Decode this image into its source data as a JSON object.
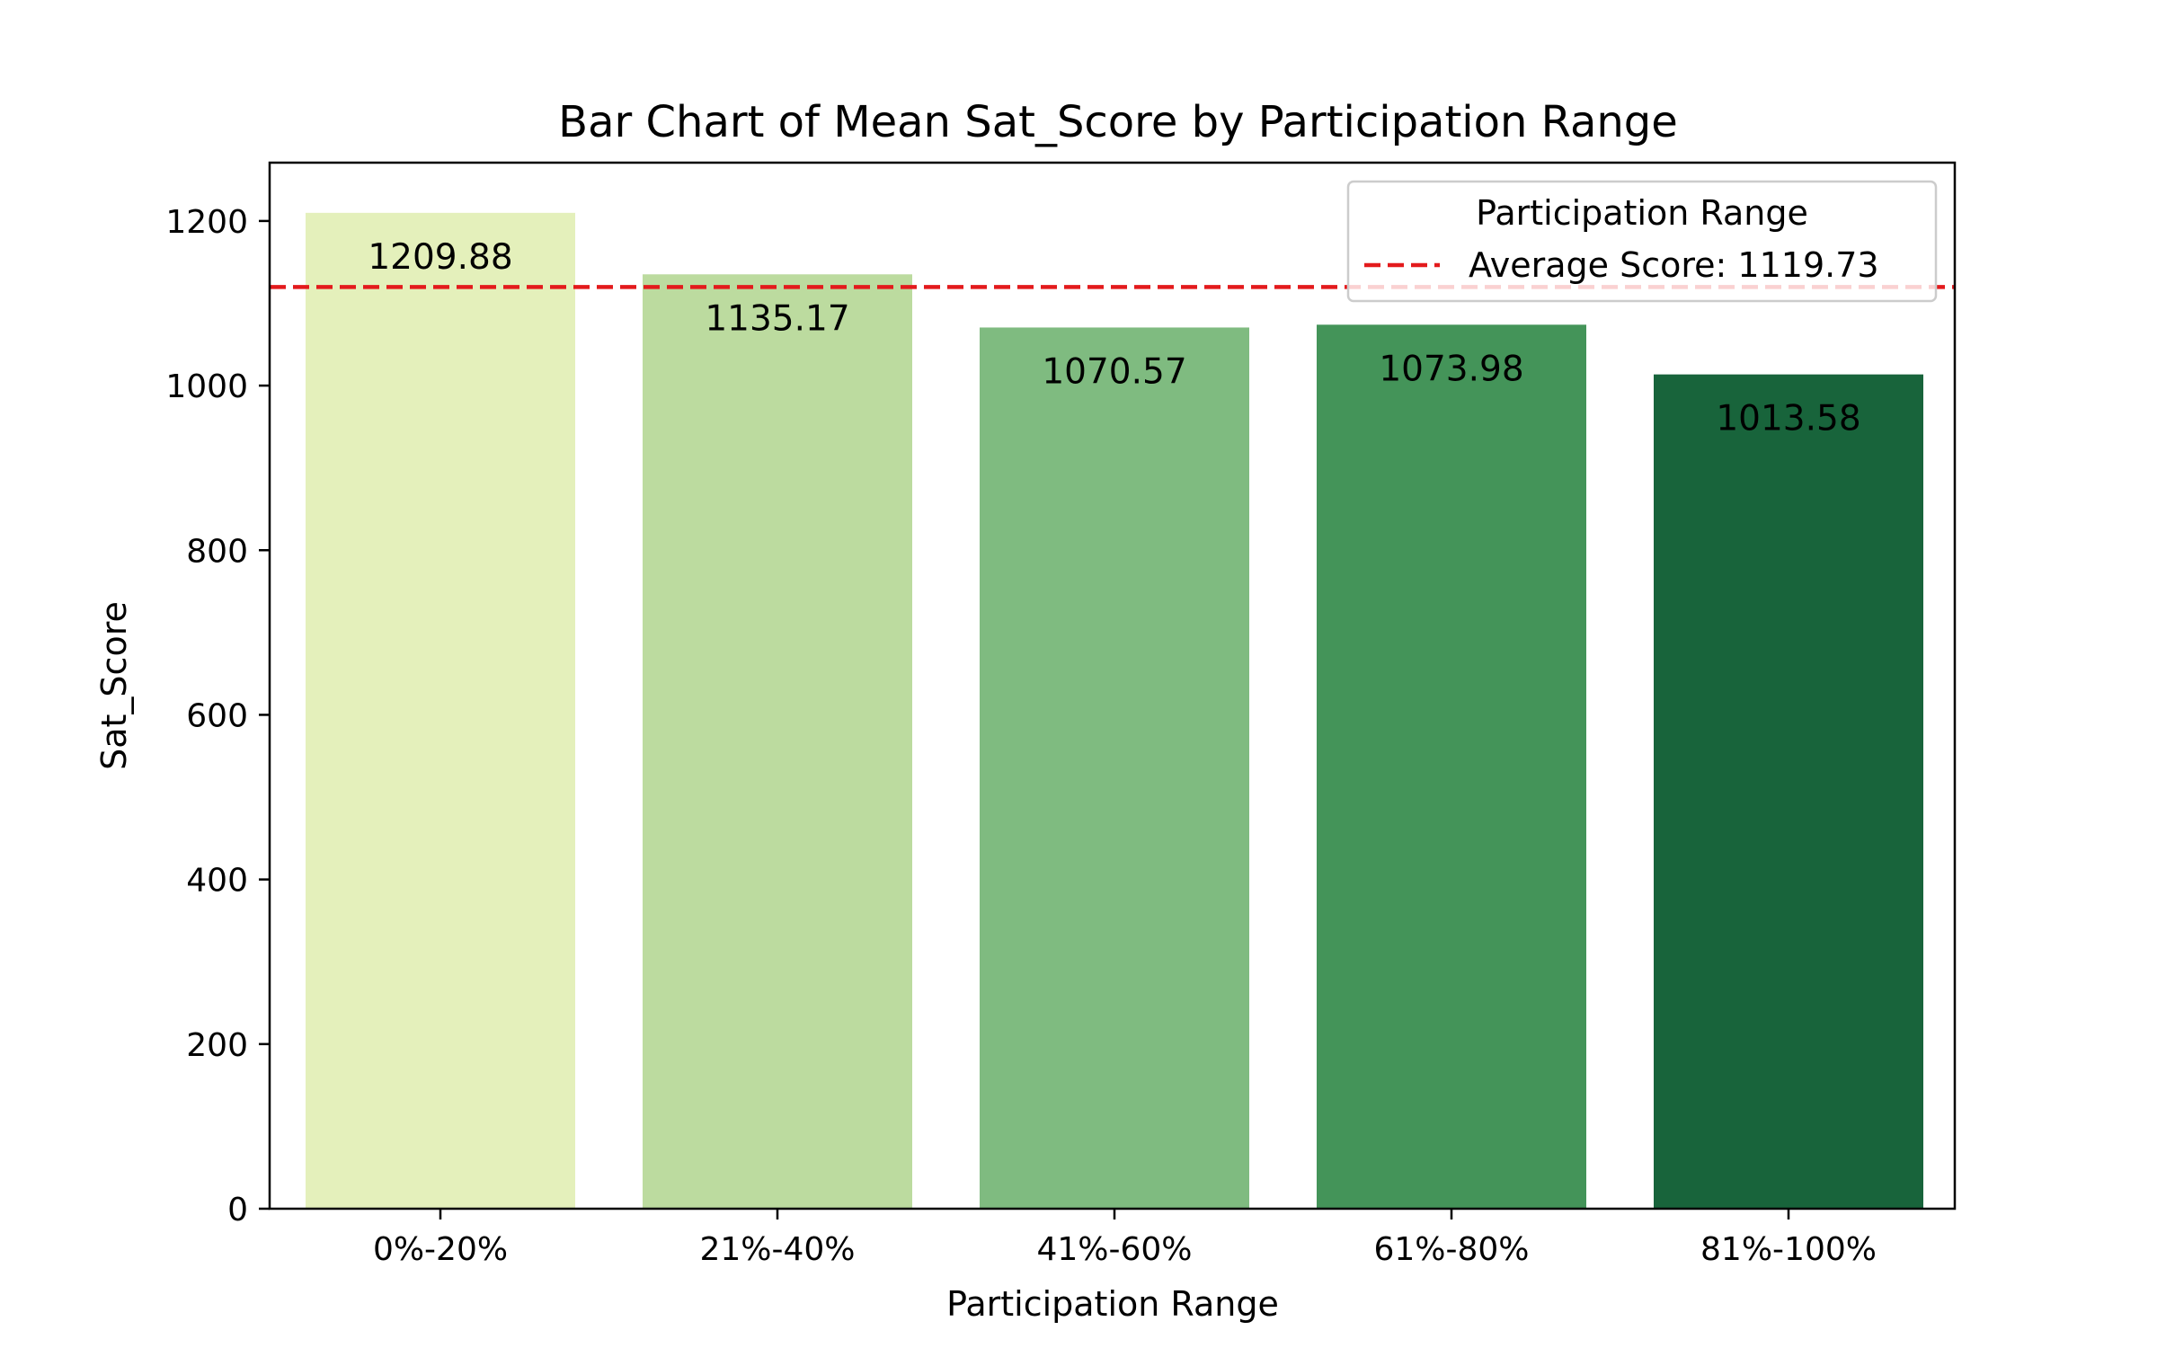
{
  "chart_data": {
    "type": "bar",
    "title": "Bar Chart of Mean Sat_Score by Participation Range",
    "xlabel": "Participation Range",
    "ylabel": "Sat_Score",
    "categories": [
      "0%-20%",
      "21%-40%",
      "41%-60%",
      "61%-80%",
      "81%-100%"
    ],
    "values": [
      1209.88,
      1135.17,
      1070.57,
      1073.98,
      1013.58
    ],
    "value_labels": [
      "1209.88",
      "1135.17",
      "1070.57",
      "1073.98",
      "1013.58"
    ],
    "bar_colors": [
      "#e4f0bb",
      "#bcdb9f",
      "#7fbb80",
      "#449459",
      "#18643b"
    ],
    "ylim": [
      0,
      1270.85
    ],
    "yticks": [
      0,
      200,
      400,
      600,
      800,
      1000,
      1200
    ],
    "ytick_labels": [
      "0",
      "200",
      "400",
      "600",
      "800",
      "1000",
      "1200"
    ],
    "reference_line": {
      "value": 1119.73,
      "color": "#e31a1c",
      "style": "dashed",
      "label": "Average Score: 1119.73"
    },
    "legend": {
      "title": "Participation Range",
      "placement": "top-right"
    },
    "grid": false
  }
}
